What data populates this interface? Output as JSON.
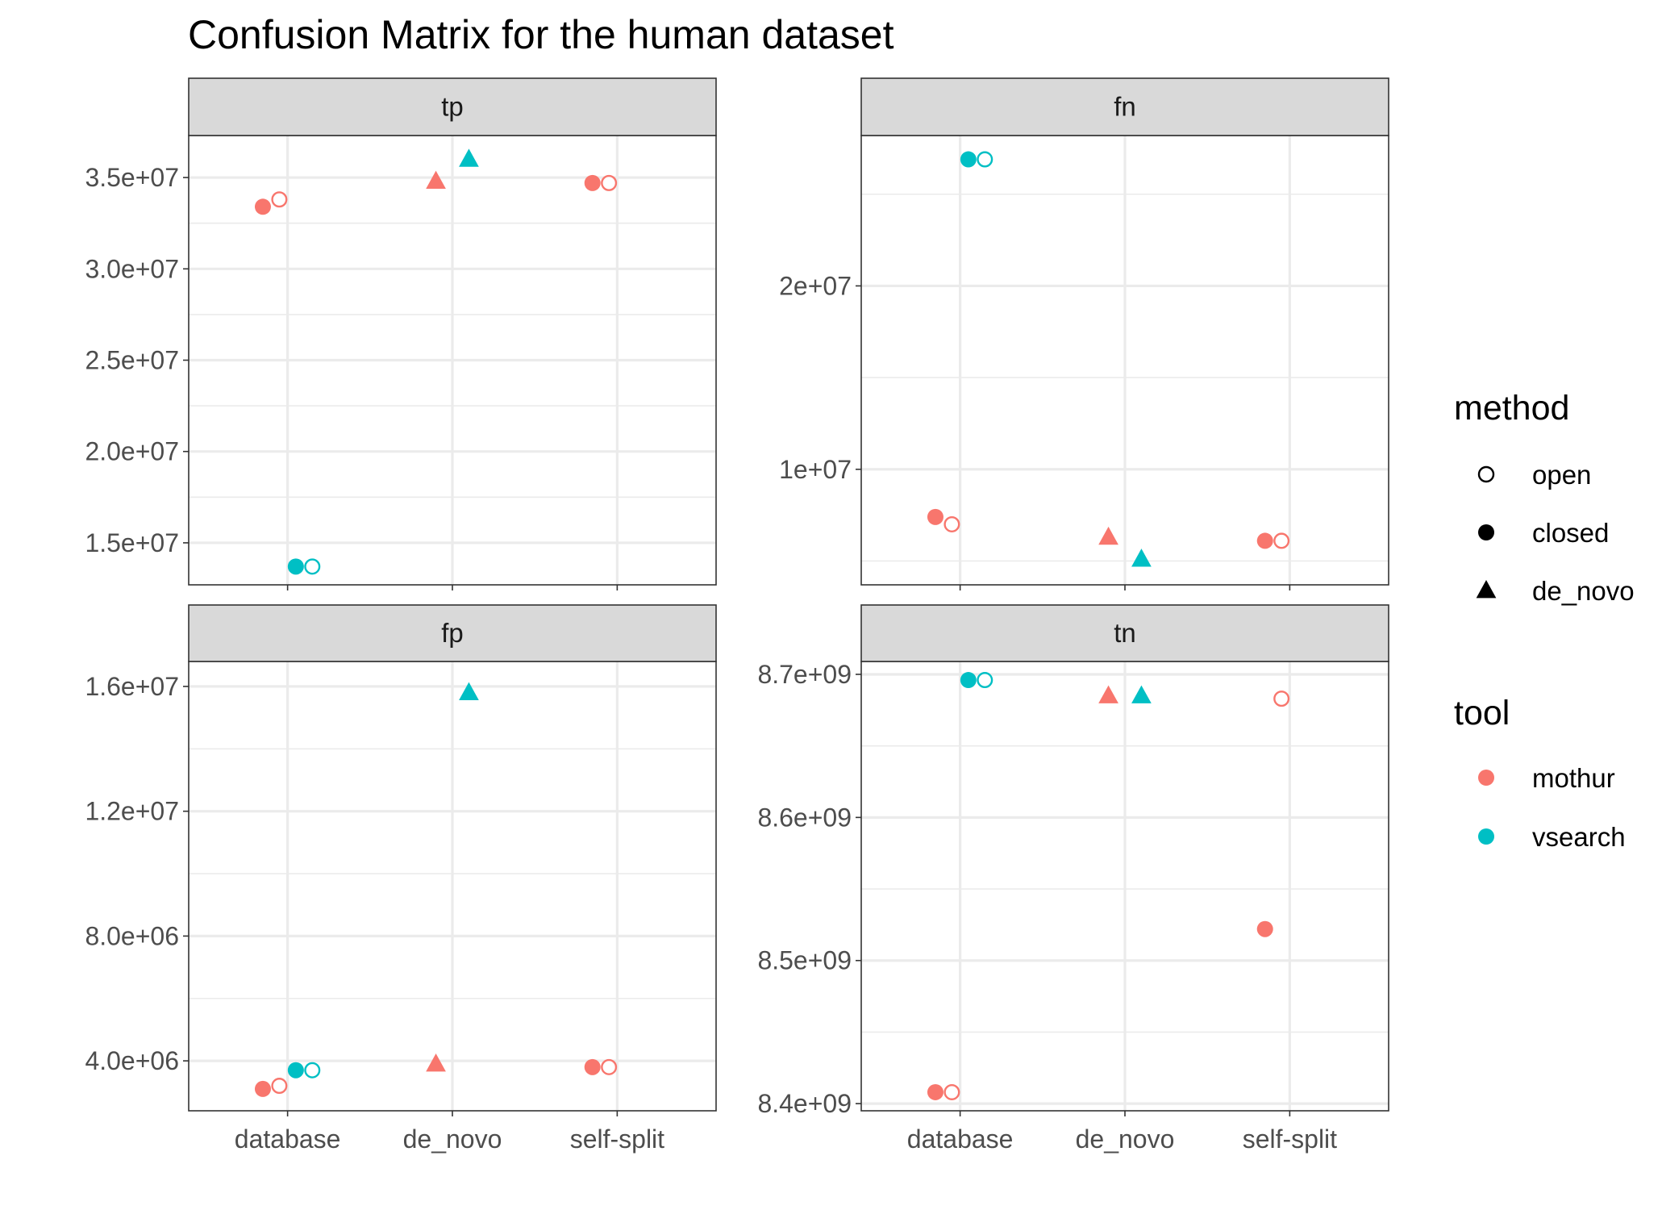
{
  "chart_data": {
    "type": "scatter",
    "title": "Confusion Matrix for the human dataset",
    "x_categories": [
      "database",
      "de_novo",
      "self-split"
    ],
    "colors": {
      "mothur": "#F8766D",
      "vsearch": "#00BFC4"
    },
    "panels": [
      {
        "name": "tp",
        "ylim": [
          12700000,
          37300000
        ],
        "y_ticks": [
          15000000,
          20000000,
          25000000,
          30000000,
          35000000
        ],
        "y_tick_labels": [
          "1.5e+07",
          "2.0e+07",
          "2.5e+07",
          "3.0e+07",
          "3.5e+07"
        ],
        "show_x_labels": false,
        "points": [
          {
            "x": "database",
            "tool": "mothur",
            "method": "closed",
            "y": 33400000
          },
          {
            "x": "database",
            "tool": "mothur",
            "method": "open",
            "y": 33800000
          },
          {
            "x": "database",
            "tool": "vsearch",
            "method": "closed",
            "y": 13700000
          },
          {
            "x": "database",
            "tool": "vsearch",
            "method": "open",
            "y": 13700000
          },
          {
            "x": "de_novo",
            "tool": "mothur",
            "method": "de_novo",
            "y": 34800000
          },
          {
            "x": "de_novo",
            "tool": "vsearch",
            "method": "de_novo",
            "y": 36000000
          },
          {
            "x": "self-split",
            "tool": "mothur",
            "method": "closed",
            "y": 34700000
          },
          {
            "x": "self-split",
            "tool": "mothur",
            "method": "open",
            "y": 34700000
          }
        ]
      },
      {
        "name": "fn",
        "ylim": [
          3700000,
          28200000
        ],
        "y_ticks": [
          10000000,
          20000000
        ],
        "y_tick_labels": [
          "1e+07",
          "2e+07"
        ],
        "show_x_labels": false,
        "points": [
          {
            "x": "database",
            "tool": "mothur",
            "method": "closed",
            "y": 7400000
          },
          {
            "x": "database",
            "tool": "mothur",
            "method": "open",
            "y": 7000000
          },
          {
            "x": "database",
            "tool": "vsearch",
            "method": "closed",
            "y": 26900000
          },
          {
            "x": "database",
            "tool": "vsearch",
            "method": "open",
            "y": 26900000
          },
          {
            "x": "de_novo",
            "tool": "mothur",
            "method": "de_novo",
            "y": 6300000
          },
          {
            "x": "de_novo",
            "tool": "vsearch",
            "method": "de_novo",
            "y": 5100000
          },
          {
            "x": "self-split",
            "tool": "mothur",
            "method": "closed",
            "y": 6100000
          },
          {
            "x": "self-split",
            "tool": "mothur",
            "method": "open",
            "y": 6100000
          }
        ]
      },
      {
        "name": "fp",
        "ylim": [
          2400000,
          16800000
        ],
        "y_ticks": [
          4000000,
          8000000,
          12000000,
          16000000
        ],
        "y_tick_labels": [
          "4.0e+06",
          "8.0e+06",
          "1.2e+07",
          "1.6e+07"
        ],
        "show_x_labels": true,
        "points": [
          {
            "x": "database",
            "tool": "mothur",
            "method": "closed",
            "y": 3100000
          },
          {
            "x": "database",
            "tool": "mothur",
            "method": "open",
            "y": 3200000
          },
          {
            "x": "database",
            "tool": "vsearch",
            "method": "closed",
            "y": 3700000
          },
          {
            "x": "database",
            "tool": "vsearch",
            "method": "open",
            "y": 3700000
          },
          {
            "x": "de_novo",
            "tool": "mothur",
            "method": "de_novo",
            "y": 3900000
          },
          {
            "x": "de_novo",
            "tool": "vsearch",
            "method": "de_novo",
            "y": 15800000
          },
          {
            "x": "self-split",
            "tool": "mothur",
            "method": "closed",
            "y": 3800000
          },
          {
            "x": "self-split",
            "tool": "mothur",
            "method": "open",
            "y": 3800000
          }
        ]
      },
      {
        "name": "tn",
        "ylim": [
          8395000000,
          8709000000
        ],
        "y_ticks": [
          8400000000,
          8500000000,
          8600000000,
          8700000000
        ],
        "y_tick_labels": [
          "8.4e+09",
          "8.5e+09",
          "8.6e+09",
          "8.7e+09"
        ],
        "show_x_labels": true,
        "points": [
          {
            "x": "database",
            "tool": "mothur",
            "method": "closed",
            "y": 8408000000
          },
          {
            "x": "database",
            "tool": "mothur",
            "method": "open",
            "y": 8408000000
          },
          {
            "x": "database",
            "tool": "vsearch",
            "method": "closed",
            "y": 8696000000
          },
          {
            "x": "database",
            "tool": "vsearch",
            "method": "open",
            "y": 8696000000
          },
          {
            "x": "de_novo",
            "tool": "mothur",
            "method": "de_novo",
            "y": 8685000000
          },
          {
            "x": "de_novo",
            "tool": "vsearch",
            "method": "de_novo",
            "y": 8685000000
          },
          {
            "x": "self-split",
            "tool": "mothur",
            "method": "closed",
            "y": 8522000000
          },
          {
            "x": "self-split",
            "tool": "mothur",
            "method": "open",
            "y": 8683000000
          }
        ]
      }
    ],
    "legend": {
      "placement": "right",
      "method": {
        "title": "method",
        "items": [
          "open",
          "closed",
          "de_novo"
        ]
      },
      "tool": {
        "title": "tool",
        "items": [
          "mothur",
          "vsearch"
        ]
      }
    }
  }
}
